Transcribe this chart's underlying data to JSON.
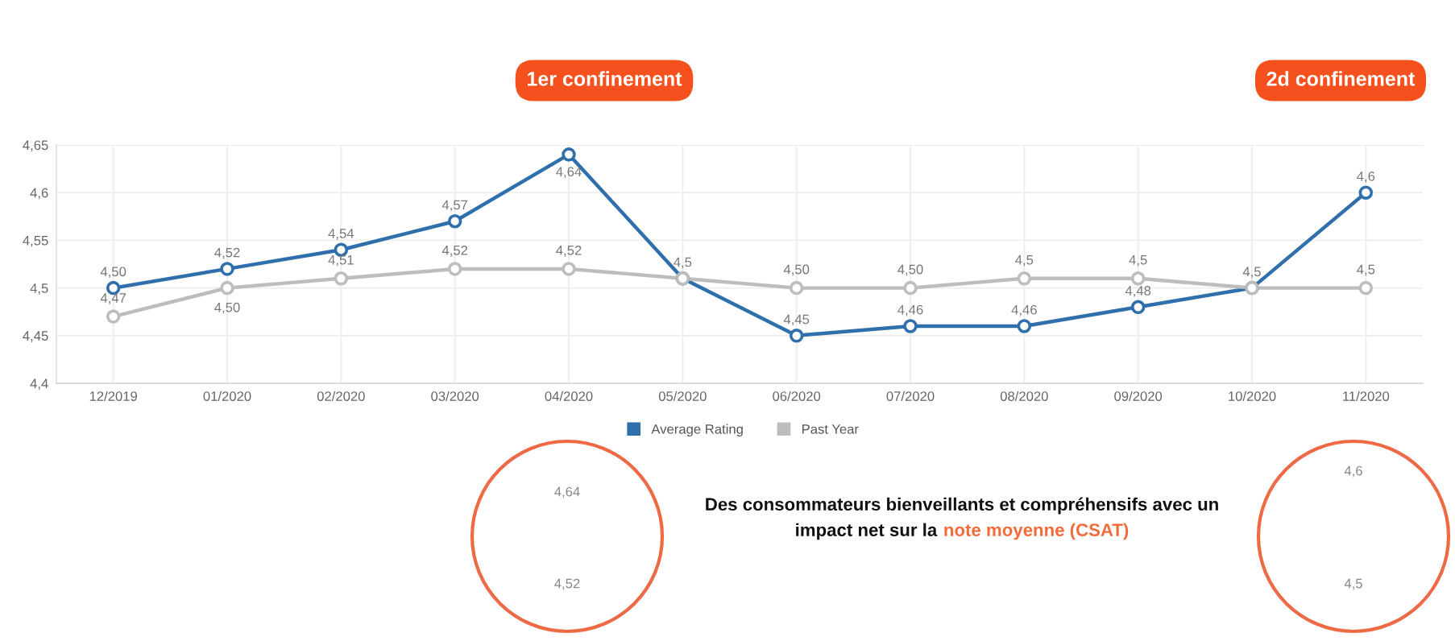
{
  "chart_data": {
    "type": "line",
    "categories": [
      "12/2019",
      "01/2020",
      "02/2020",
      "03/2020",
      "04/2020",
      "05/2020",
      "06/2020",
      "07/2020",
      "08/2020",
      "09/2020",
      "10/2020",
      "11/2020"
    ],
    "series": [
      {
        "name": "Average Rating",
        "color": "#2f6fab",
        "values": [
          4.5,
          4.52,
          4.54,
          4.57,
          4.64,
          4.51,
          4.45,
          4.46,
          4.46,
          4.48,
          4.5,
          4.6
        ],
        "value_labels": [
          "4,50",
          "4,52",
          "4,54",
          "4,57",
          "4,64",
          "4,5",
          "4,45",
          "4,46",
          "4,46",
          "4,48",
          "4,5",
          "4,6"
        ]
      },
      {
        "name": "Past Year",
        "color": "#bdbdbd",
        "values": [
          4.47,
          4.5,
          4.51,
          4.52,
          4.52,
          4.51,
          4.5,
          4.5,
          4.51,
          4.51,
          4.5,
          4.5
        ],
        "value_labels": [
          "4,47",
          "4,50",
          "4,51",
          "4,52",
          "4,52",
          null,
          "4,50",
          "4,50",
          "4,5",
          "4,5",
          null,
          "4,5"
        ]
      }
    ],
    "ylim": [
      4.4,
      4.65
    ],
    "yticks": [
      {
        "value": 4.4,
        "label": "4,4"
      },
      {
        "value": 4.45,
        "label": "4,45"
      },
      {
        "value": 4.5,
        "label": "4,5"
      },
      {
        "value": 4.55,
        "label": "4,55"
      },
      {
        "value": 4.6,
        "label": "4,6"
      },
      {
        "value": 4.65,
        "label": "4,65"
      }
    ],
    "grid": true,
    "legend": "bottom",
    "marker": "circle",
    "line_style": "solid",
    "annotations": [
      "1er confinement",
      "2d confinement",
      "Des consommateurs bienveillants et compréhensifs avec un\nimpact net sur la",
      "note moyenne (CSAT)",
      "4,64",
      "4,52",
      "4,6",
      "4,5"
    ]
  }
}
